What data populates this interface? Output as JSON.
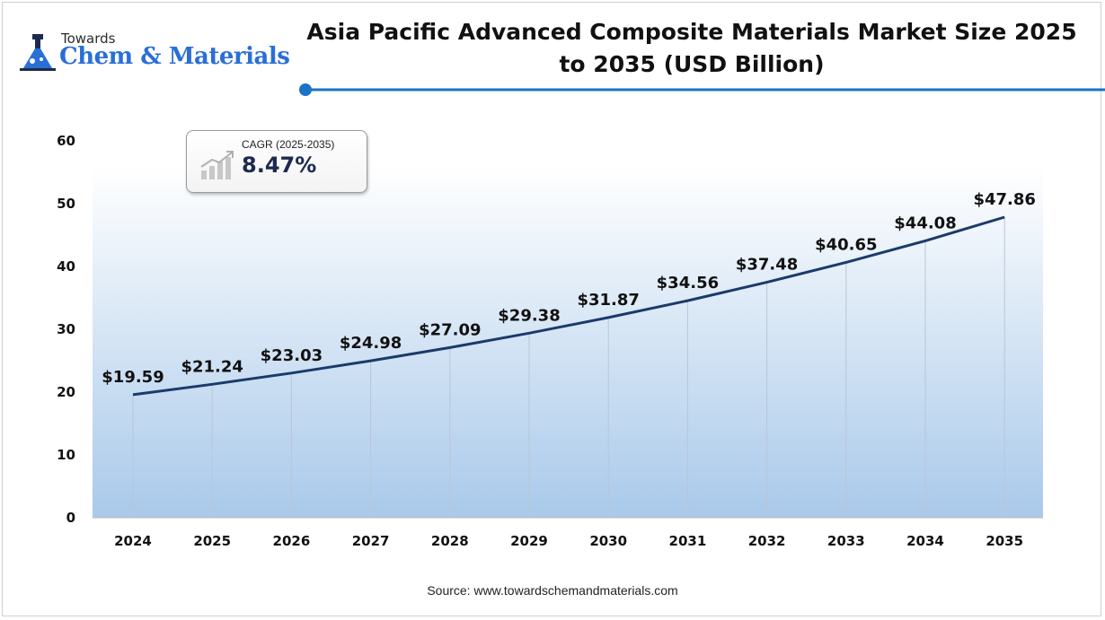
{
  "brand": {
    "line1": "Towards",
    "line2": "Chem & Materials",
    "color": "#2a6fd6"
  },
  "chart_data": {
    "type": "line",
    "title": "Asia Pacific Advanced Composite Materials Market Size 2025 to 2035 (USD Billion)",
    "categories": [
      "2024",
      "2025",
      "2026",
      "2027",
      "2028",
      "2029",
      "2030",
      "2031",
      "2032",
      "2033",
      "2034",
      "2035"
    ],
    "values": [
      19.59,
      21.24,
      23.03,
      24.98,
      27.09,
      29.38,
      31.87,
      34.56,
      37.48,
      40.65,
      44.08,
      47.86
    ],
    "data_labels": [
      "$19.59",
      "$21.24",
      "$23.03",
      "$24.98",
      "$27.09",
      "$29.38",
      "$31.87",
      "$34.56",
      "$37.48",
      "$40.65",
      "$44.08",
      "$47.86"
    ],
    "y_ticks": [
      "0",
      "10",
      "20",
      "30",
      "40",
      "50",
      "60"
    ],
    "ylim": [
      0,
      60
    ],
    "xlabel": "",
    "ylabel": "",
    "grid": false,
    "line_color": "#1b3a6b",
    "area_gradient": [
      "#ffffff",
      "#a9c9ea"
    ]
  },
  "cagr": {
    "label": "CAGR (2025-2035)",
    "value": "8.47%"
  },
  "source": "Source: www.towardschemandmaterials.com",
  "colors": {
    "accent": "#1a73c8",
    "title": "#111111"
  }
}
